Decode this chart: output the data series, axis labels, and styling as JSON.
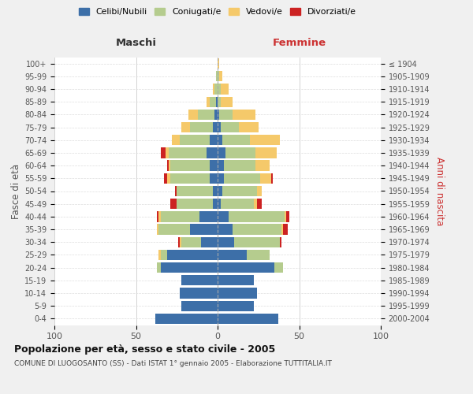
{
  "age_groups": [
    "0-4",
    "5-9",
    "10-14",
    "15-19",
    "20-24",
    "25-29",
    "30-34",
    "35-39",
    "40-44",
    "45-49",
    "50-54",
    "55-59",
    "60-64",
    "65-69",
    "70-74",
    "75-79",
    "80-84",
    "85-89",
    "90-94",
    "95-99",
    "100+"
  ],
  "birth_years": [
    "2000-2004",
    "1995-1999",
    "1990-1994",
    "1985-1989",
    "1980-1984",
    "1975-1979",
    "1970-1974",
    "1965-1969",
    "1960-1964",
    "1955-1959",
    "1950-1954",
    "1945-1949",
    "1940-1944",
    "1935-1939",
    "1930-1934",
    "1925-1929",
    "1920-1924",
    "1915-1919",
    "1910-1914",
    "1905-1909",
    "≤ 1904"
  ],
  "male": {
    "celibi": [
      38,
      22,
      23,
      22,
      35,
      31,
      10,
      17,
      11,
      3,
      3,
      5,
      5,
      7,
      5,
      3,
      2,
      1,
      0,
      0,
      0
    ],
    "coniugati": [
      0,
      0,
      0,
      0,
      2,
      4,
      12,
      19,
      24,
      22,
      22,
      24,
      24,
      23,
      18,
      14,
      10,
      4,
      2,
      1,
      0
    ],
    "vedovi": [
      0,
      0,
      0,
      0,
      0,
      1,
      1,
      1,
      1,
      0,
      0,
      2,
      1,
      2,
      5,
      5,
      6,
      2,
      1,
      0,
      0
    ],
    "divorziati": [
      0,
      0,
      0,
      0,
      0,
      0,
      1,
      0,
      1,
      4,
      1,
      2,
      1,
      3,
      0,
      0,
      0,
      0,
      0,
      0,
      0
    ]
  },
  "female": {
    "nubili": [
      37,
      22,
      24,
      22,
      35,
      18,
      10,
      9,
      7,
      2,
      3,
      4,
      4,
      5,
      3,
      2,
      1,
      0,
      0,
      0,
      0
    ],
    "coniugate": [
      0,
      0,
      0,
      0,
      5,
      14,
      28,
      30,
      34,
      20,
      21,
      22,
      19,
      18,
      17,
      11,
      8,
      2,
      2,
      1,
      0
    ],
    "vedove": [
      0,
      0,
      0,
      0,
      0,
      0,
      0,
      1,
      1,
      2,
      3,
      7,
      9,
      13,
      18,
      12,
      14,
      7,
      5,
      2,
      1
    ],
    "divorziate": [
      0,
      0,
      0,
      0,
      0,
      0,
      1,
      3,
      2,
      3,
      0,
      1,
      0,
      0,
      0,
      0,
      0,
      0,
      0,
      0,
      0
    ]
  },
  "colors": {
    "celibi": "#3d6fa8",
    "coniugati": "#b5cc8e",
    "vedovi": "#f5c96a",
    "divorziati": "#cc2222"
  },
  "xlim": 100,
  "title": "Popolazione per età, sesso e stato civile - 2005",
  "subtitle": "COMUNE DI LUOGOSANTO (SS) - Dati ISTAT 1° gennaio 2005 - Elaborazione TUTTITALIA.IT",
  "ylabel_left": "Fasce di età",
  "ylabel_right": "Anni di nascita",
  "xlabel_left": "Maschi",
  "xlabel_right": "Femmine",
  "bg_color": "#f0f0f0",
  "plot_bg_color": "#ffffff"
}
